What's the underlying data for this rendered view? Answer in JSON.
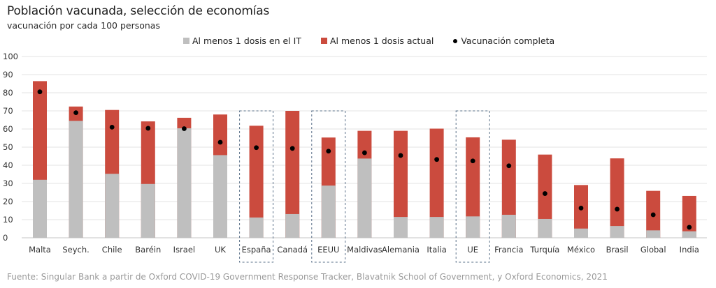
{
  "header": {
    "title": "Población vacunada, selección de economías",
    "subtitle": "vacunación por cada 100 personas"
  },
  "legend": {
    "items": [
      {
        "label": "Al menos 1 dosis en el IT",
        "kind": "square",
        "color": "#BFBFBF"
      },
      {
        "label": "Al menos 1 dosis actual",
        "kind": "square",
        "color": "#CB4B3E"
      },
      {
        "label": "Vacunación completa",
        "kind": "dot",
        "color": "#000000"
      }
    ]
  },
  "footer": {
    "source": "Fuente: Singular Bank a partir de Oxford COVID-19 Government Response Tracker, Blavatnik School of Government, y Oxford Economics, 2021"
  },
  "colors": {
    "it_bar": "#BFBFBF",
    "current_bar": "#CB4B3E",
    "complete_dot": "#000000",
    "grid": "#E3E3E3",
    "highlight_box": "#5A7089"
  },
  "chart_data": {
    "type": "bar",
    "stacked": "overlay",
    "title": "Población vacunada, selección de economías",
    "subtitle": "vacunación por cada 100 personas",
    "xlabel": "",
    "ylabel": "",
    "ylim": [
      0,
      100
    ],
    "yticks": [
      0,
      10,
      20,
      30,
      40,
      50,
      60,
      70,
      80,
      90,
      100
    ],
    "grid": true,
    "legend_position": "top-center",
    "categories": [
      "Malta",
      "Seych.",
      "Chile",
      "Baréin",
      "Israel",
      "UK",
      "España",
      "Canadá",
      "EEUU",
      "Maldivas",
      "Alemania",
      "Italia",
      "UE",
      "Francia",
      "Turquía",
      "México",
      "Brasil",
      "Global",
      "India"
    ],
    "highlighted": [
      "España",
      "EEUU",
      "UE"
    ],
    "series": [
      {
        "name": "Al menos 1 dosis en el IT",
        "type": "bar",
        "values": [
          32.0,
          64.5,
          35.3,
          29.7,
          60.4,
          45.6,
          11.2,
          13.1,
          28.8,
          43.7,
          11.5,
          11.5,
          11.8,
          12.7,
          10.4,
          5.1,
          6.5,
          4.1,
          3.6
        ]
      },
      {
        "name": "Al menos 1 dosis actual",
        "type": "bar",
        "values": [
          86.4,
          72.4,
          70.5,
          64.2,
          66.2,
          68.0,
          61.8,
          70.0,
          55.3,
          59.0,
          59.0,
          60.2,
          55.4,
          54.1,
          45.9,
          29.1,
          43.8,
          25.9,
          23.1
        ]
      },
      {
        "name": "Vacunación completa",
        "type": "scatter",
        "values": [
          80.5,
          69.0,
          61.0,
          60.4,
          60.2,
          52.7,
          49.7,
          49.3,
          47.8,
          46.9,
          45.4,
          43.2,
          42.4,
          39.7,
          24.4,
          16.4,
          15.8,
          12.7,
          5.8
        ]
      }
    ]
  }
}
